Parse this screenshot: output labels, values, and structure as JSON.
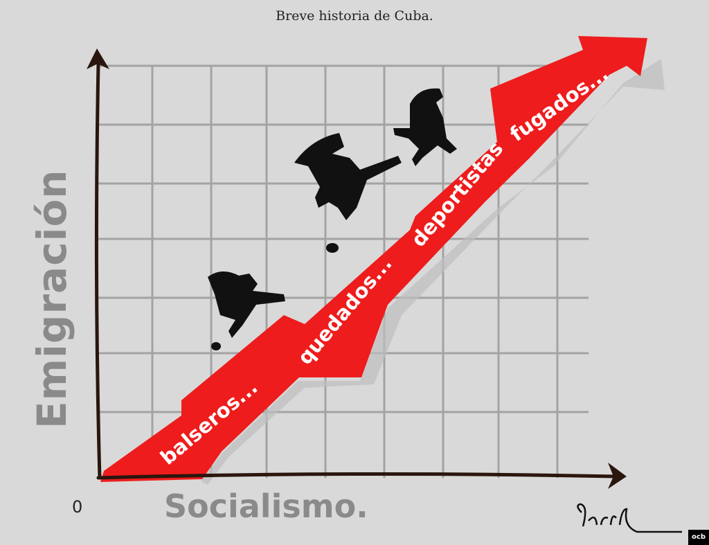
{
  "title": "Breve historia de Cuba.",
  "y_axis_label": "Emigración",
  "x_axis_label": "Socialismo.",
  "origin_label": "0",
  "arrow_labels": [
    "balseros...",
    "quedados...",
    "deportistas",
    "fugados..."
  ],
  "signature": "Garrincha",
  "logo": "ocb",
  "colors": {
    "arrow": "#ee1c1c",
    "axis": "#2a160e",
    "grid": "#9a9a9a",
    "background": "#d9d9d9"
  }
}
